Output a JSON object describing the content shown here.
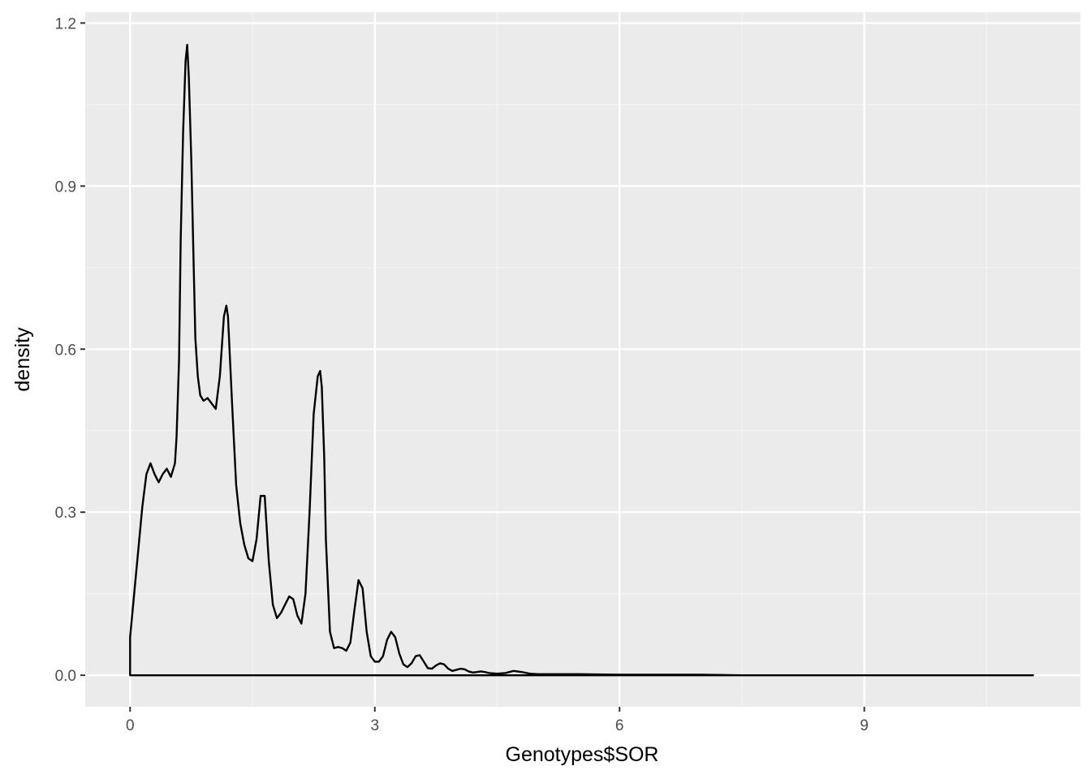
{
  "colors": {
    "panel_background": "#ebebeb",
    "grid_major": "#ffffff",
    "grid_minor": "#f5f5f5",
    "density_line": "#000000",
    "tick_text": "#4d4d4d",
    "tick_mark": "#333333"
  },
  "chart_data": {
    "type": "area",
    "geom": "density",
    "fill": "none",
    "title": "",
    "xlabel": "Genotypes$SOR",
    "ylabel": "density",
    "xlim": [
      -0.55,
      11.65
    ],
    "ylim": [
      -0.058,
      1.22
    ],
    "x_ticks": [
      0,
      3,
      6,
      9
    ],
    "x_tick_labels": [
      "0",
      "3",
      "6",
      "9"
    ],
    "y_ticks": [
      0.0,
      0.3,
      0.6,
      0.9,
      1.2
    ],
    "y_tick_labels": [
      "0.0",
      "0.3",
      "0.6",
      "0.9",
      "1.2"
    ],
    "x_minor_ticks": [
      1.5,
      4.5,
      7.5,
      10.5
    ],
    "y_minor_ticks": [
      0.15,
      0.45,
      0.75,
      1.05
    ],
    "grid": true,
    "legend": "none",
    "series": [
      {
        "x": [
          0,
          0.05,
          0.1,
          0.15,
          0.2,
          0.25,
          0.3,
          0.35,
          0.4,
          0.45,
          0.5,
          0.55,
          0.57,
          0.6,
          0.62,
          0.65,
          0.68,
          0.7,
          0.72,
          0.75,
          0.78,
          0.8,
          0.83,
          0.86,
          0.9,
          0.95,
          1.0,
          1.05,
          1.1,
          1.15,
          1.18,
          1.2,
          1.25,
          1.3,
          1.35,
          1.4,
          1.45,
          1.5,
          1.55,
          1.6,
          1.65,
          1.7,
          1.75,
          1.8,
          1.85,
          1.9,
          1.95,
          2.0,
          2.05,
          2.1,
          2.15,
          2.2,
          2.25,
          2.3,
          2.33,
          2.35,
          2.38,
          2.4,
          2.45,
          2.5,
          2.55,
          2.6,
          2.65,
          2.7,
          2.75,
          2.8,
          2.85,
          2.9,
          2.95,
          3.0,
          3.05,
          3.1,
          3.15,
          3.2,
          3.25,
          3.3,
          3.35,
          3.4,
          3.45,
          3.5,
          3.55,
          3.6,
          3.65,
          3.7,
          3.75,
          3.8,
          3.85,
          3.9,
          3.95,
          4.0,
          4.05,
          4.1,
          4.15,
          4.2,
          4.25,
          4.3,
          4.35,
          4.4,
          4.5,
          4.6,
          4.7,
          4.8,
          4.9,
          5.0,
          5.2,
          5.5,
          6.0,
          6.5,
          7.0,
          7.5,
          8.0,
          9.0,
          10.0,
          11.07
        ],
        "y": [
          0.07,
          0.15,
          0.23,
          0.31,
          0.37,
          0.39,
          0.37,
          0.355,
          0.37,
          0.38,
          0.365,
          0.39,
          0.44,
          0.58,
          0.8,
          1.0,
          1.13,
          1.16,
          1.1,
          0.95,
          0.75,
          0.62,
          0.55,
          0.515,
          0.505,
          0.51,
          0.5,
          0.49,
          0.55,
          0.66,
          0.68,
          0.66,
          0.5,
          0.35,
          0.28,
          0.24,
          0.215,
          0.21,
          0.25,
          0.33,
          0.33,
          0.21,
          0.13,
          0.105,
          0.115,
          0.13,
          0.145,
          0.14,
          0.11,
          0.095,
          0.15,
          0.3,
          0.48,
          0.55,
          0.56,
          0.53,
          0.4,
          0.25,
          0.08,
          0.05,
          0.052,
          0.05,
          0.045,
          0.06,
          0.12,
          0.175,
          0.16,
          0.08,
          0.035,
          0.025,
          0.025,
          0.035,
          0.065,
          0.08,
          0.07,
          0.04,
          0.02,
          0.015,
          0.022,
          0.035,
          0.037,
          0.025,
          0.013,
          0.012,
          0.018,
          0.022,
          0.02,
          0.012,
          0.008,
          0.01,
          0.012,
          0.011,
          0.007,
          0.005,
          0.006,
          0.007,
          0.006,
          0.004,
          0.003,
          0.004,
          0.008,
          0.006,
          0.003,
          0.002,
          0.002,
          0.002,
          0.001,
          0.001,
          0.001,
          0.0,
          0.0,
          0.0,
          0.0,
          0.0
        ]
      }
    ]
  }
}
